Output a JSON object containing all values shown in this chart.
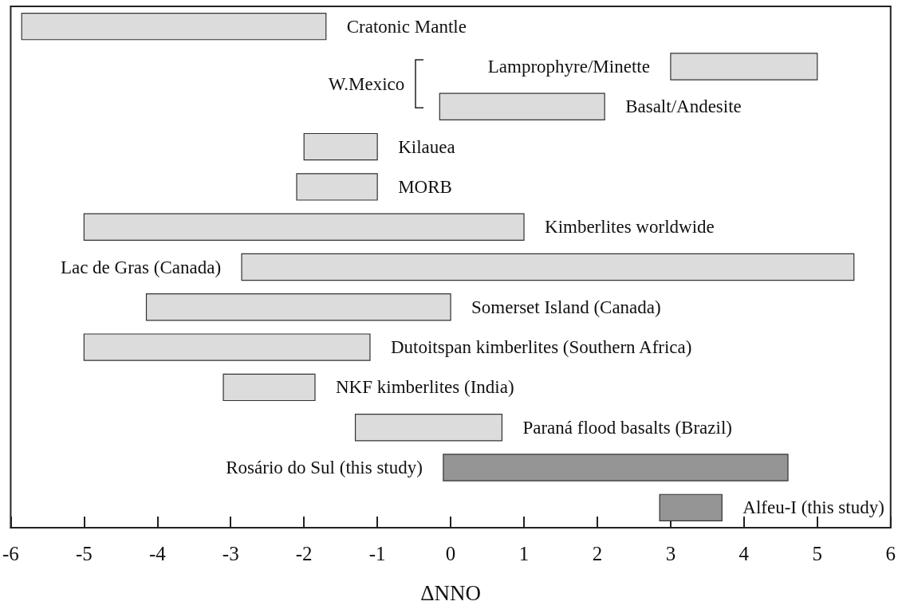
{
  "chart_data": {
    "type": "bar",
    "orientation": "horizontal",
    "xlabel": "ΔNNO",
    "categories": [
      "Cratonic Mantle",
      "Lamprophyre/Minette",
      "Basalt/Andesite",
      "Kilauea",
      "MORB",
      "Kimberlites worldwide",
      "Lac de Gras (Canada)",
      "Somerset Island (Canada)",
      "Dutoitspan kimberlites (Southern Africa)",
      "NKF kimberlites (India)",
      "Paraná flood basalts (Brazil)",
      "Rosário do Sul (this study)",
      "Alfeu-I (this study)"
    ],
    "base": [
      -5.85,
      3.0,
      -0.15,
      -2.0,
      -2.1,
      -5.0,
      -2.85,
      -4.15,
      -5.0,
      -3.1,
      -1.3,
      -0.1,
      2.85
    ],
    "values": [
      4.15,
      2.0,
      2.25,
      1.0,
      1.1,
      6.0,
      8.35,
      4.15,
      3.9,
      1.25,
      2.0,
      4.7,
      0.85
    ],
    "colors": [
      "#dcdcdc",
      "#dcdcdc",
      "#dcdcdc",
      "#dcdcdc",
      "#dcdcdc",
      "#dcdcdc",
      "#dcdcdc",
      "#dcdcdc",
      "#dcdcdc",
      "#dcdcdc",
      "#dcdcdc",
      "#959595",
      "#959595"
    ],
    "xlim": [
      -6,
      6
    ],
    "xticks": [
      -6,
      -5,
      -4,
      -3,
      -2,
      -1,
      0,
      1,
      2,
      3,
      4,
      5,
      6
    ],
    "tick_labels": "x",
    "annotations": [
      "W.Mexico"
    ]
  }
}
